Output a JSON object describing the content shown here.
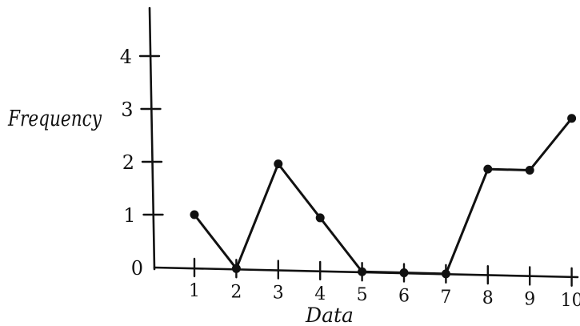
{
  "chart_data": {
    "type": "line",
    "title": "",
    "xlabel": "Data",
    "ylabel": "Frequency",
    "x": [
      1,
      2,
      3,
      4,
      5,
      6,
      7,
      8,
      9,
      10
    ],
    "x_tick_labels": [
      "1",
      "2",
      "3",
      "4",
      "5",
      "6",
      "7",
      "8",
      "9",
      "10"
    ],
    "y_tick_labels": [
      "0",
      "1",
      "2",
      "3",
      "4"
    ],
    "ylim": [
      0,
      4
    ],
    "grid": false,
    "series": [
      {
        "values": [
          1,
          0,
          2,
          1,
          0,
          0,
          0,
          2,
          2,
          3
        ]
      }
    ]
  }
}
